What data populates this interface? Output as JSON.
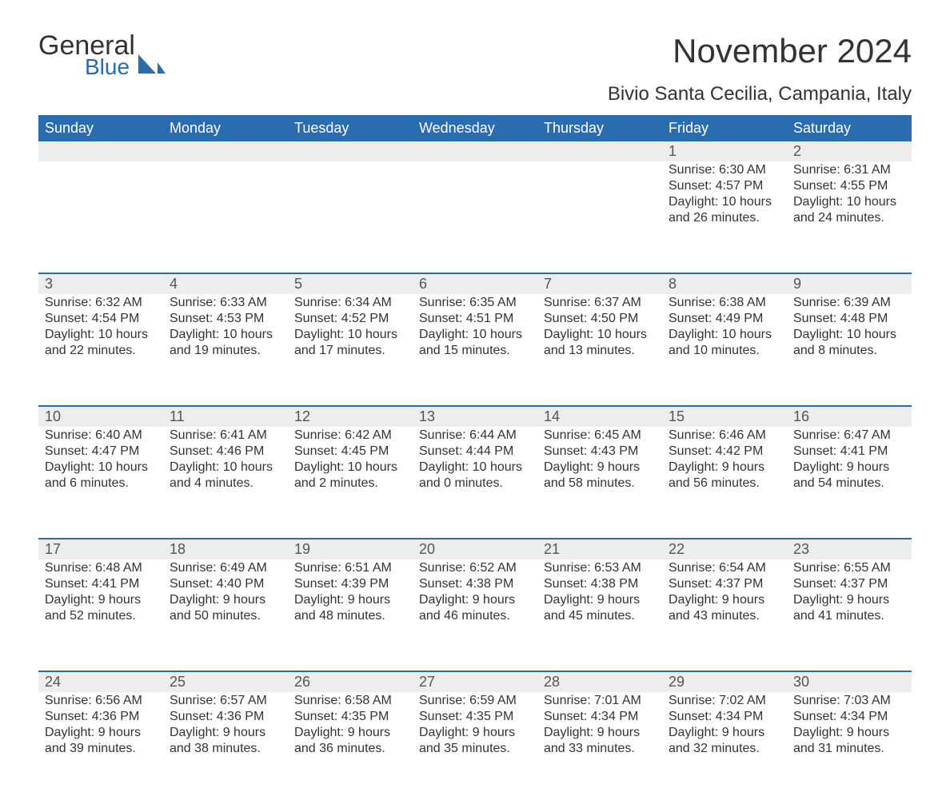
{
  "logo": {
    "main": "General",
    "sub": "Blue",
    "sail_color": "#2a6cb0"
  },
  "title": "November 2024",
  "location": "Bivio Santa Cecilia, Campania, Italy",
  "colors": {
    "header_bg": "#2a6cb0",
    "header_text": "#ffffff",
    "row_divider": "#2a6cb0",
    "daynum_bg": "#ededed",
    "body_text": "#333333",
    "background": "#ffffff"
  },
  "typography": {
    "title_fontsize": 42,
    "location_fontsize": 24,
    "header_fontsize": 18,
    "body_fontsize": 16
  },
  "weekdays": [
    "Sunday",
    "Monday",
    "Tuesday",
    "Wednesday",
    "Thursday",
    "Friday",
    "Saturday"
  ],
  "weeks": [
    [
      null,
      null,
      null,
      null,
      null,
      {
        "day": "1",
        "sunrise": "Sunrise: 6:30 AM",
        "sunset": "Sunset: 4:57 PM",
        "d1": "Daylight: 10 hours",
        "d2": "and 26 minutes."
      },
      {
        "day": "2",
        "sunrise": "Sunrise: 6:31 AM",
        "sunset": "Sunset: 4:55 PM",
        "d1": "Daylight: 10 hours",
        "d2": "and 24 minutes."
      }
    ],
    [
      {
        "day": "3",
        "sunrise": "Sunrise: 6:32 AM",
        "sunset": "Sunset: 4:54 PM",
        "d1": "Daylight: 10 hours",
        "d2": "and 22 minutes."
      },
      {
        "day": "4",
        "sunrise": "Sunrise: 6:33 AM",
        "sunset": "Sunset: 4:53 PM",
        "d1": "Daylight: 10 hours",
        "d2": "and 19 minutes."
      },
      {
        "day": "5",
        "sunrise": "Sunrise: 6:34 AM",
        "sunset": "Sunset: 4:52 PM",
        "d1": "Daylight: 10 hours",
        "d2": "and 17 minutes."
      },
      {
        "day": "6",
        "sunrise": "Sunrise: 6:35 AM",
        "sunset": "Sunset: 4:51 PM",
        "d1": "Daylight: 10 hours",
        "d2": "and 15 minutes."
      },
      {
        "day": "7",
        "sunrise": "Sunrise: 6:37 AM",
        "sunset": "Sunset: 4:50 PM",
        "d1": "Daylight: 10 hours",
        "d2": "and 13 minutes."
      },
      {
        "day": "8",
        "sunrise": "Sunrise: 6:38 AM",
        "sunset": "Sunset: 4:49 PM",
        "d1": "Daylight: 10 hours",
        "d2": "and 10 minutes."
      },
      {
        "day": "9",
        "sunrise": "Sunrise: 6:39 AM",
        "sunset": "Sunset: 4:48 PM",
        "d1": "Daylight: 10 hours",
        "d2": "and 8 minutes."
      }
    ],
    [
      {
        "day": "10",
        "sunrise": "Sunrise: 6:40 AM",
        "sunset": "Sunset: 4:47 PM",
        "d1": "Daylight: 10 hours",
        "d2": "and 6 minutes."
      },
      {
        "day": "11",
        "sunrise": "Sunrise: 6:41 AM",
        "sunset": "Sunset: 4:46 PM",
        "d1": "Daylight: 10 hours",
        "d2": "and 4 minutes."
      },
      {
        "day": "12",
        "sunrise": "Sunrise: 6:42 AM",
        "sunset": "Sunset: 4:45 PM",
        "d1": "Daylight: 10 hours",
        "d2": "and 2 minutes."
      },
      {
        "day": "13",
        "sunrise": "Sunrise: 6:44 AM",
        "sunset": "Sunset: 4:44 PM",
        "d1": "Daylight: 10 hours",
        "d2": "and 0 minutes."
      },
      {
        "day": "14",
        "sunrise": "Sunrise: 6:45 AM",
        "sunset": "Sunset: 4:43 PM",
        "d1": "Daylight: 9 hours",
        "d2": "and 58 minutes."
      },
      {
        "day": "15",
        "sunrise": "Sunrise: 6:46 AM",
        "sunset": "Sunset: 4:42 PM",
        "d1": "Daylight: 9 hours",
        "d2": "and 56 minutes."
      },
      {
        "day": "16",
        "sunrise": "Sunrise: 6:47 AM",
        "sunset": "Sunset: 4:41 PM",
        "d1": "Daylight: 9 hours",
        "d2": "and 54 minutes."
      }
    ],
    [
      {
        "day": "17",
        "sunrise": "Sunrise: 6:48 AM",
        "sunset": "Sunset: 4:41 PM",
        "d1": "Daylight: 9 hours",
        "d2": "and 52 minutes."
      },
      {
        "day": "18",
        "sunrise": "Sunrise: 6:49 AM",
        "sunset": "Sunset: 4:40 PM",
        "d1": "Daylight: 9 hours",
        "d2": "and 50 minutes."
      },
      {
        "day": "19",
        "sunrise": "Sunrise: 6:51 AM",
        "sunset": "Sunset: 4:39 PM",
        "d1": "Daylight: 9 hours",
        "d2": "and 48 minutes."
      },
      {
        "day": "20",
        "sunrise": "Sunrise: 6:52 AM",
        "sunset": "Sunset: 4:38 PM",
        "d1": "Daylight: 9 hours",
        "d2": "and 46 minutes."
      },
      {
        "day": "21",
        "sunrise": "Sunrise: 6:53 AM",
        "sunset": "Sunset: 4:38 PM",
        "d1": "Daylight: 9 hours",
        "d2": "and 45 minutes."
      },
      {
        "day": "22",
        "sunrise": "Sunrise: 6:54 AM",
        "sunset": "Sunset: 4:37 PM",
        "d1": "Daylight: 9 hours",
        "d2": "and 43 minutes."
      },
      {
        "day": "23",
        "sunrise": "Sunrise: 6:55 AM",
        "sunset": "Sunset: 4:37 PM",
        "d1": "Daylight: 9 hours",
        "d2": "and 41 minutes."
      }
    ],
    [
      {
        "day": "24",
        "sunrise": "Sunrise: 6:56 AM",
        "sunset": "Sunset: 4:36 PM",
        "d1": "Daylight: 9 hours",
        "d2": "and 39 minutes."
      },
      {
        "day": "25",
        "sunrise": "Sunrise: 6:57 AM",
        "sunset": "Sunset: 4:36 PM",
        "d1": "Daylight: 9 hours",
        "d2": "and 38 minutes."
      },
      {
        "day": "26",
        "sunrise": "Sunrise: 6:58 AM",
        "sunset": "Sunset: 4:35 PM",
        "d1": "Daylight: 9 hours",
        "d2": "and 36 minutes."
      },
      {
        "day": "27",
        "sunrise": "Sunrise: 6:59 AM",
        "sunset": "Sunset: 4:35 PM",
        "d1": "Daylight: 9 hours",
        "d2": "and 35 minutes."
      },
      {
        "day": "28",
        "sunrise": "Sunrise: 7:01 AM",
        "sunset": "Sunset: 4:34 PM",
        "d1": "Daylight: 9 hours",
        "d2": "and 33 minutes."
      },
      {
        "day": "29",
        "sunrise": "Sunrise: 7:02 AM",
        "sunset": "Sunset: 4:34 PM",
        "d1": "Daylight: 9 hours",
        "d2": "and 32 minutes."
      },
      {
        "day": "30",
        "sunrise": "Sunrise: 7:03 AM",
        "sunset": "Sunset: 4:34 PM",
        "d1": "Daylight: 9 hours",
        "d2": "and 31 minutes."
      }
    ]
  ]
}
